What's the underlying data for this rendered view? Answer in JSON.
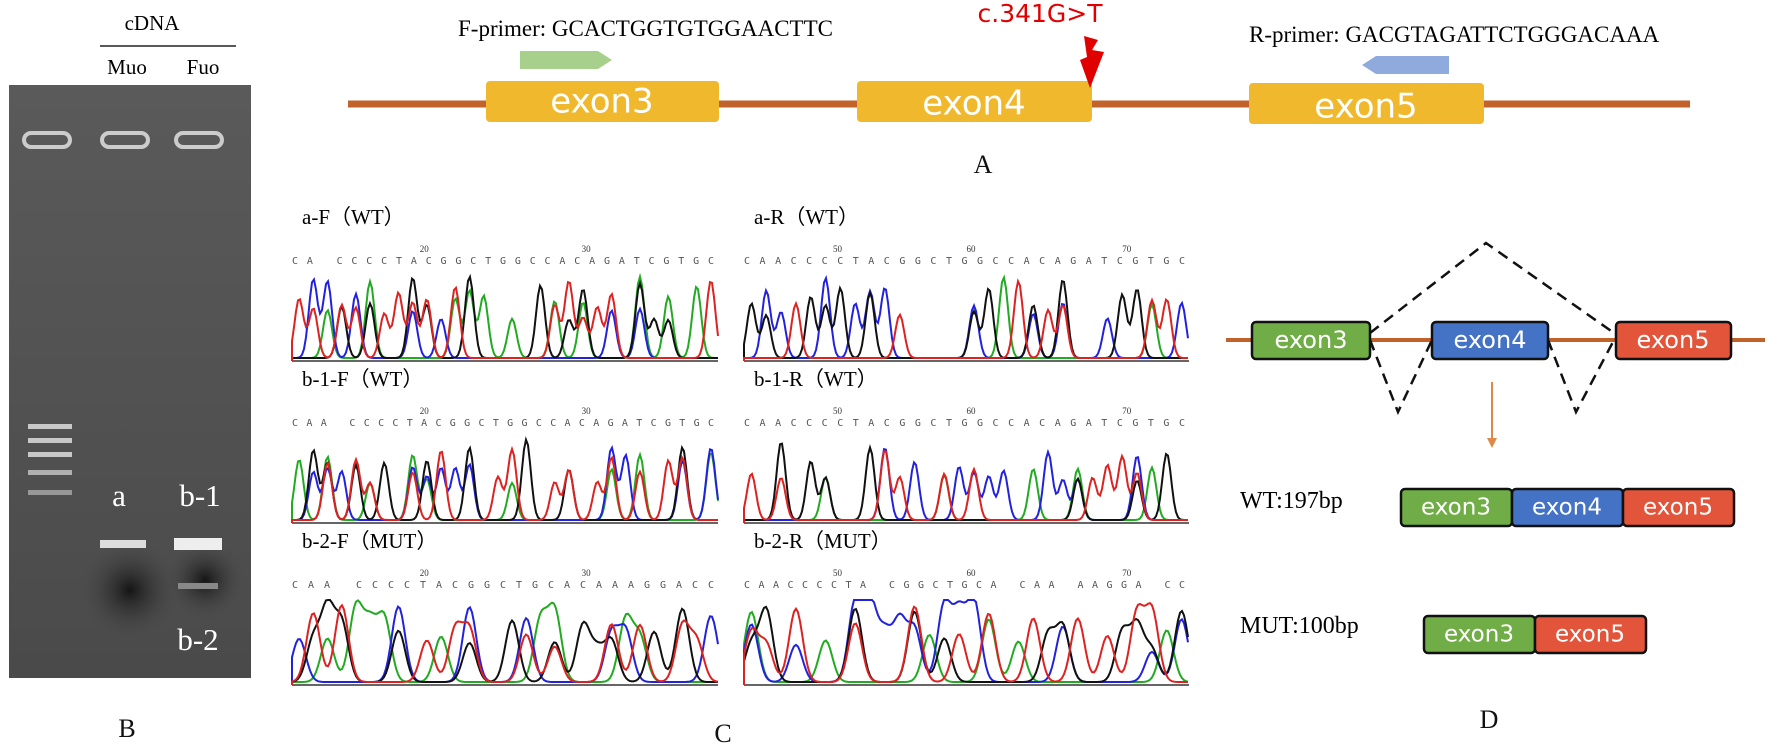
{
  "panel_a": {
    "f_primer": "F-primer: GCACTGGTGTGGAACTTC",
    "r_primer": "R-primer: GACGTAGATTCTGGGACAAA",
    "mutation": "c.341G>T",
    "exons": [
      "exon3",
      "exon4",
      "exon5"
    ],
    "label": "A"
  },
  "panel_b": {
    "header": "cDNA",
    "lanes": [
      "Muo",
      "Fuo"
    ],
    "bands": [
      "a",
      "b-1",
      "b-2"
    ],
    "label": "B"
  },
  "panel_c": {
    "traces": [
      {
        "title": "a-F（WT）",
        "sequence": "CA CCCCTACGGCTGGCCACAGATCGTGC",
        "positions": [
          20,
          30
        ]
      },
      {
        "title": "a-R（WT）",
        "sequence": "CAACCCCTACGGCTGGCCACAGATCGTGC",
        "positions": [
          50,
          60,
          70
        ]
      },
      {
        "title": "b-1-F（WT）",
        "sequence": "CAA CCCCTACGGCTGGCCACAGATCGTGC",
        "positions": [
          20,
          30
        ]
      },
      {
        "title": "b-1-R（WT）",
        "sequence": "CAACCCCTACGGCTGGCCACAGATCGTGC",
        "positions": [
          50,
          60,
          70
        ]
      },
      {
        "title": "b-2-F（MUT）",
        "sequence": "CAA CCCCTACGGCTGCACAAAGGACC",
        "positions": [
          20,
          30
        ]
      },
      {
        "title": "b-2-R（MUT）",
        "sequence": "CAACCCCTA CGGCTGCA CAA AAGGA  CC",
        "positions": [
          50,
          60,
          70
        ]
      }
    ],
    "label": "C"
  },
  "panel_d": {
    "exons": [
      "exon3",
      "exon4",
      "exon5"
    ],
    "products": [
      {
        "label": "WT:197bp",
        "exons": [
          "exon3",
          "exon4",
          "exon5"
        ]
      },
      {
        "label": "MUT:100bp",
        "exons": [
          "exon3",
          "exon5"
        ]
      }
    ],
    "label": "D"
  }
}
